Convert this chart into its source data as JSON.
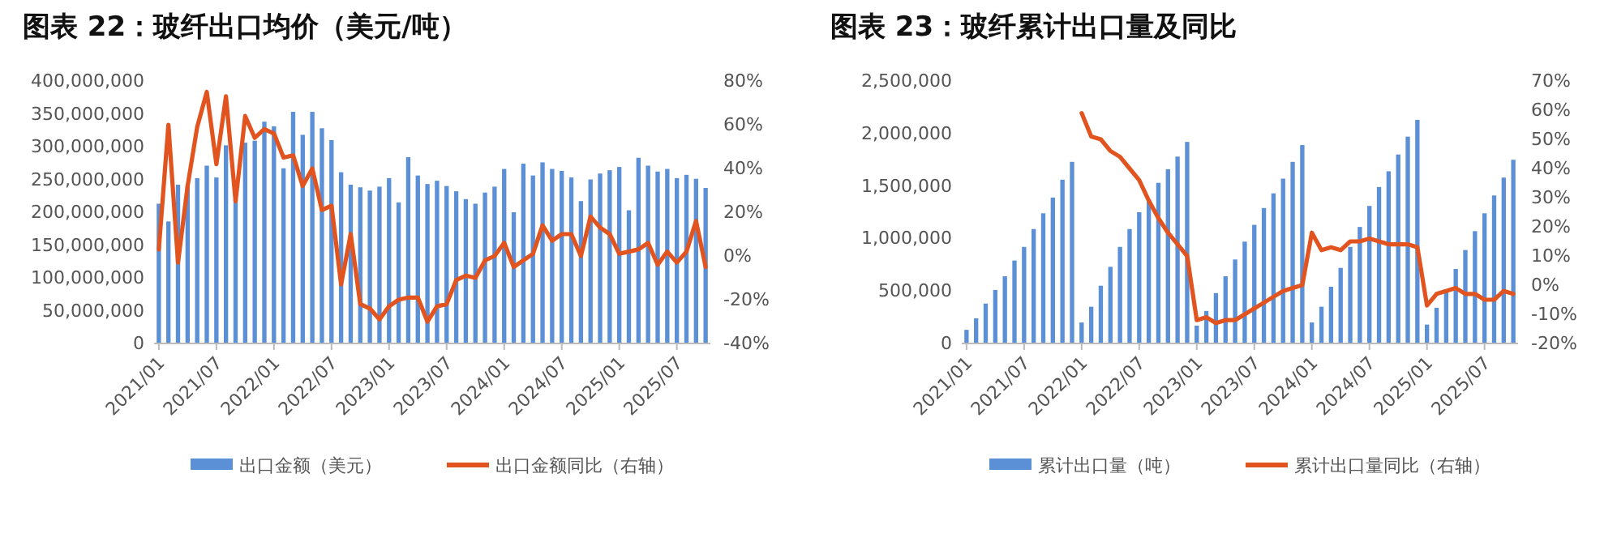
{
  "chart_data": [
    {
      "type": "bar",
      "title": "图表 22：玻纤出口均价（美元/吨）",
      "categories": [
        "2021/01",
        null,
        null,
        null,
        null,
        null,
        "2021/07",
        null,
        null,
        null,
        null,
        null,
        "2022/01",
        null,
        null,
        null,
        null,
        null,
        "2022/07",
        null,
        null,
        null,
        null,
        null,
        "2023/01",
        null,
        null,
        null,
        null,
        null,
        "2023/07",
        null,
        null,
        null,
        null,
        null,
        "2024/01",
        null,
        null,
        null,
        null,
        null,
        "2024/07",
        null,
        null,
        null,
        null,
        null,
        "2025/01",
        null,
        null,
        null,
        null,
        null,
        "2025/07",
        null,
        null,
        null
      ],
      "series": [
        {
          "name": "出口金额（美元）",
          "color": "#5b8fd6",
          "values": [
            213000000,
            186000000,
            242000000,
            240000000,
            252000000,
            271000000,
            253000000,
            302000000,
            220000000,
            306000000,
            309000000,
            338000000,
            331000000,
            267000000,
            353000000,
            318000000,
            353000000,
            328000000,
            310000000,
            261000000,
            242000000,
            238000000,
            233000000,
            239000000,
            252000000,
            215000000,
            284000000,
            256000000,
            243000000,
            248000000,
            240000000,
            232000000,
            220000000,
            213000000,
            230000000,
            239000000,
            266000000,
            200000000,
            274000000,
            256000000,
            276000000,
            266000000,
            263000000,
            253000000,
            217000000,
            250000000,
            259000000,
            264000000,
            269000000,
            203000000,
            283000000,
            271000000,
            262000000,
            266000000,
            252000000,
            257000000,
            251000000,
            237000000
          ]
        },
        {
          "name": "出口金额同比（右轴）",
          "type": "line",
          "axis": "y2",
          "color": "#e2541f",
          "values": [
            3,
            60,
            -3,
            32,
            59,
            75,
            42,
            73,
            25,
            64,
            54,
            58,
            56,
            45,
            46,
            32,
            40,
            21,
            23,
            -13,
            10,
            -22,
            -24,
            -29,
            -23,
            -20,
            -19,
            -19,
            -30,
            -23,
            -22,
            -11,
            -9,
            -10,
            -2,
            0,
            6,
            -5,
            -2,
            1,
            14,
            7,
            10,
            10,
            0,
            18,
            13,
            10,
            1,
            2,
            3,
            6,
            -4,
            2,
            -3,
            2,
            16,
            -5
          ]
        }
      ],
      "ylim": [
        0,
        400000000
      ],
      "yticks": [
        0,
        {
          "value": 50000000,
          "label": "50,000,000"
        },
        {
          "value": 100000000,
          "label": "100,000,000"
        },
        {
          "value": 150000000,
          "label": "150,000,000"
        },
        {
          "value": 200000000,
          "label": "200,000,000"
        },
        {
          "value": 250000000,
          "label": "250,000,000"
        },
        {
          "value": 300000000,
          "label": "300,000,000"
        },
        {
          "value": 350000000,
          "label": "350,000,000"
        },
        {
          "value": 400000000,
          "label": "400,000,000"
        }
      ],
      "y2lim": [
        -40,
        80
      ],
      "y2ticks": [
        {
          "value": -40,
          "label": "-40%"
        },
        {
          "value": -20,
          "label": "-20%"
        },
        {
          "value": 0,
          "label": "0%"
        },
        {
          "value": 20,
          "label": "20%"
        },
        {
          "value": 40,
          "label": "40%"
        },
        {
          "value": 60,
          "label": "60%"
        },
        {
          "value": 80,
          "label": "80%"
        }
      ],
      "grid": false,
      "legend": "bottom"
    },
    {
      "type": "bar",
      "title": "图表 23：玻纤累计出口量及同比",
      "categories": [
        "2021/01",
        null,
        null,
        null,
        null,
        null,
        "2021/07",
        null,
        null,
        null,
        null,
        null,
        "2022/01",
        null,
        null,
        null,
        null,
        null,
        "2022/07",
        null,
        null,
        null,
        null,
        null,
        "2023/01",
        null,
        null,
        null,
        null,
        null,
        "2023/07",
        null,
        null,
        null,
        null,
        null,
        "2024/01",
        null,
        null,
        null,
        null,
        null,
        "2024/07",
        null,
        null,
        null,
        null,
        null,
        "2025/01",
        null,
        null,
        null,
        null,
        null,
        "2025/07",
        null,
        null,
        null
      ],
      "series": [
        {
          "name": "累计出口量（吨）",
          "color": "#5b8fd6",
          "values": [
            130000,
            240000,
            380000,
            510000,
            640000,
            790000,
            920000,
            1090000,
            1240000,
            1390000,
            1560000,
            1730000,
            200000,
            350000,
            550000,
            730000,
            920000,
            1090000,
            1250000,
            1370000,
            1530000,
            1660000,
            1780000,
            1920000,
            170000,
            310000,
            480000,
            640000,
            800000,
            970000,
            1130000,
            1290000,
            1430000,
            1570000,
            1730000,
            1890000,
            200000,
            350000,
            540000,
            720000,
            920000,
            1110000,
            1310000,
            1490000,
            1640000,
            1800000,
            1970000,
            2130000,
            180000,
            340000,
            510000,
            710000,
            890000,
            1070000,
            1240000,
            1410000,
            1580000,
            1750000
          ]
        },
        {
          "name": "累计出口量同比（右轴）",
          "type": "line",
          "axis": "y2",
          "color": "#e2541f",
          "values": [
            null,
            null,
            null,
            null,
            null,
            null,
            null,
            null,
            null,
            null,
            null,
            null,
            59,
            51,
            50,
            46,
            44,
            40,
            36,
            29,
            23,
            18,
            14,
            10,
            -12,
            -11,
            -13,
            -12,
            -12,
            -10,
            -8,
            -6,
            -4,
            -2,
            -1,
            0,
            18,
            12,
            13,
            12,
            15,
            15,
            16,
            15,
            14,
            14,
            14,
            13,
            -7,
            -3,
            -2,
            -1,
            -3,
            -3,
            -5,
            -5,
            -2,
            -3
          ]
        }
      ],
      "ylim": [
        0,
        2500000
      ],
      "yticks": [
        0,
        {
          "value": 500000,
          "label": "500,000"
        },
        {
          "value": 1000000,
          "label": "1,000,000"
        },
        {
          "value": 1500000,
          "label": "1,500,000"
        },
        {
          "value": 2000000,
          "label": "2,000,000"
        },
        {
          "value": 2500000,
          "label": "2,500,000"
        }
      ],
      "y2lim": [
        -20,
        70
      ],
      "y2ticks": [
        {
          "value": -20,
          "label": "-20%"
        },
        {
          "value": -10,
          "label": "-10%"
        },
        {
          "value": 0,
          "label": "0%"
        },
        {
          "value": 10,
          "label": "10%"
        },
        {
          "value": 20,
          "label": "20%"
        },
        {
          "value": 30,
          "label": "30%"
        },
        {
          "value": 40,
          "label": "40%"
        },
        {
          "value": 50,
          "label": "50%"
        },
        {
          "value": 60,
          "label": "60%"
        },
        {
          "value": 70,
          "label": "70%"
        }
      ],
      "grid": false,
      "legend": "bottom"
    }
  ]
}
